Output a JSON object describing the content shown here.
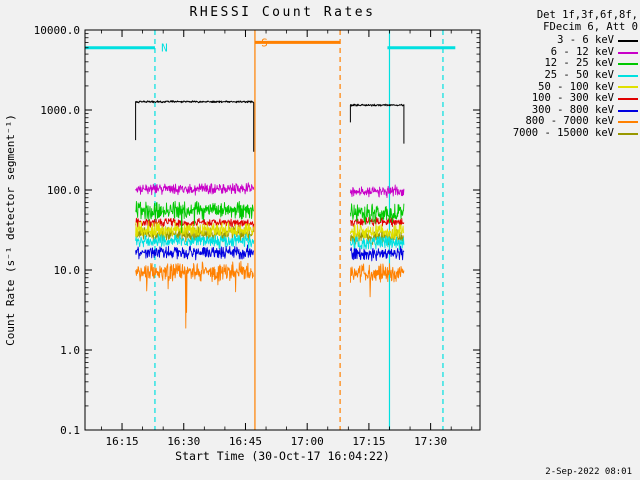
{
  "legend": {
    "header_line1": "Det 1f,3f,6f,8f,",
    "header_line2": "FDecim 6, Att 0"
  },
  "footer": {
    "timestamp": "2-Sep-2022 08:01"
  },
  "chart_data": {
    "type": "line",
    "title": "RHESSI Count Rates",
    "xlabel": "Start Time (30-Oct-17 16:04:22)",
    "ylabel": "Count Rate (s⁻¹ detector segment⁻¹)",
    "y_scale": "log",
    "x_unit_minutes_after": "16:00 30-Oct-17",
    "xlim": [
      6,
      102
    ],
    "ylim": [
      0.1,
      10000
    ],
    "x_ticks": [
      {
        "x": 15,
        "label": "16:15"
      },
      {
        "x": 30,
        "label": "16:30"
      },
      {
        "x": 45,
        "label": "16:45"
      },
      {
        "x": 60,
        "label": "17:00"
      },
      {
        "x": 75,
        "label": "17:15"
      },
      {
        "x": 90,
        "label": "17:30"
      }
    ],
    "y_ticks": [
      {
        "v": 0.1,
        "label": "0.1"
      },
      {
        "v": 1,
        "label": "1.0"
      },
      {
        "v": 10,
        "label": "10.0"
      },
      {
        "v": 100,
        "label": "100.0"
      },
      {
        "v": 1000,
        "label": "1000.0"
      },
      {
        "v": 10000,
        "label": "10000.0"
      }
    ],
    "series": [
      {
        "name": "3 - 6 keV",
        "color": "#000000",
        "noise_dex": 0.012,
        "width": 1.0,
        "segments": [
          {
            "x0": 18.3,
            "x1": 47.0,
            "level": 1270,
            "start_v": 420,
            "end_v": 300
          },
          {
            "x0": 70.5,
            "x1": 83.5,
            "level": 1150,
            "start_v": 700,
            "end_v": 380
          }
        ]
      },
      {
        "name": "6 - 12 keV",
        "color": "#c800c8",
        "noise_dex": 0.07,
        "segments": [
          {
            "x0": 18.3,
            "x1": 47.0,
            "level": 103
          },
          {
            "x0": 70.5,
            "x1": 83.5,
            "level": 96
          }
        ]
      },
      {
        "name": "12 - 25 keV",
        "color": "#00c800",
        "noise_dex": 0.12,
        "spike_prob": 0.004,
        "segments": [
          {
            "x0": 18.3,
            "x1": 47.0,
            "level": 55
          },
          {
            "x0": 70.5,
            "x1": 83.5,
            "level": 50
          }
        ]
      },
      {
        "name": "25 - 50 keV",
        "color": "#00e0e0",
        "noise_dex": 0.085,
        "segments": [
          {
            "x0": 18.3,
            "x1": 47.0,
            "level": 23
          },
          {
            "x0": 70.5,
            "x1": 83.5,
            "level": 22
          }
        ]
      },
      {
        "name": "50 - 100 keV",
        "color": "#e0e000",
        "noise_dex": 0.1,
        "segments": [
          {
            "x0": 18.3,
            "x1": 47.0,
            "level": 32
          },
          {
            "x0": 70.5,
            "x1": 83.5,
            "level": 30
          }
        ]
      },
      {
        "name": "100 - 300 keV",
        "color": "#e00000",
        "noise_dex": 0.055,
        "segments": [
          {
            "x0": 18.3,
            "x1": 47.0,
            "level": 39
          },
          {
            "x0": 70.5,
            "x1": 83.5,
            "level": 40
          }
        ]
      },
      {
        "name": "300 - 800 keV",
        "color": "#0000e0",
        "noise_dex": 0.085,
        "segments": [
          {
            "x0": 18.3,
            "x1": 47.0,
            "level": 16.5
          },
          {
            "x0": 70.5,
            "x1": 83.5,
            "level": 16
          }
        ]
      },
      {
        "name": "800 - 7000 keV",
        "color": "#ff8000",
        "noise_dex": 0.12,
        "spike_prob": 0.02,
        "segments": [
          {
            "x0": 18.3,
            "x1": 47.0,
            "level": 9.6
          },
          {
            "x0": 70.5,
            "x1": 83.5,
            "level": 9.2
          }
        ]
      },
      {
        "name": "7000 - 15000 keV",
        "color": "#989800",
        "noise_dex": 0.09,
        "segments": [
          {
            "x0": 18.3,
            "x1": 47.0,
            "level": 28
          },
          {
            "x0": 70.5,
            "x1": 83.5,
            "level": 26
          }
        ]
      }
    ],
    "flags": [
      {
        "label": "N",
        "color": "#00e0e0",
        "level": 6000,
        "label_x": 24.5,
        "spans": [
          [
            6,
            23
          ],
          [
            79.5,
            96
          ]
        ]
      },
      {
        "label": "S",
        "color": "#ff8000",
        "level": 7000,
        "label_x": 48.8,
        "spans": [
          [
            47.3,
            68
          ]
        ]
      }
    ],
    "vlines": [
      {
        "x": 23,
        "color": "#00e0e0",
        "dash": true
      },
      {
        "x": 47.3,
        "color": "#ff8000",
        "dash": false
      },
      {
        "x": 68,
        "color": "#ff8000",
        "dash": true
      },
      {
        "x": 80,
        "color": "#00e0e0",
        "dash": false
      },
      {
        "x": 93,
        "color": "#00e0e0",
        "dash": true
      }
    ],
    "legend_position": "right",
    "grid": false
  }
}
